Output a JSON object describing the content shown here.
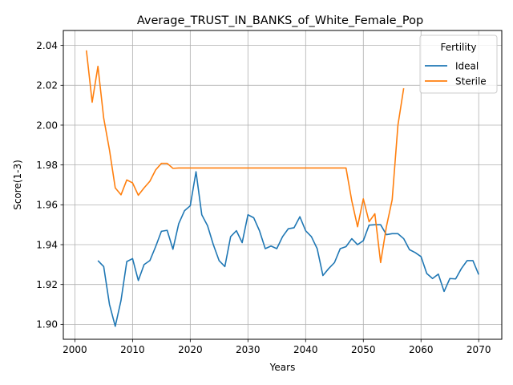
{
  "chart_data": {
    "type": "line",
    "title": "Average_TRUST_IN_BANKS_of_White_Female_Pop",
    "xlabel": "Years",
    "ylabel": "Score(1-3)",
    "xlim": [
      1998,
      2074
    ],
    "ylim": [
      1.8925,
      2.0475
    ],
    "x_ticks": [
      2000,
      2010,
      2020,
      2030,
      2040,
      2050,
      2060,
      2070
    ],
    "y_ticks": [
      1.9,
      1.92,
      1.94,
      1.96,
      1.98,
      2.0,
      2.02,
      2.04
    ],
    "x_tick_labels": [
      "2000",
      "2010",
      "2020",
      "2030",
      "2040",
      "2050",
      "2060",
      "2070"
    ],
    "y_tick_labels": [
      "1.90",
      "1.92",
      "1.94",
      "1.96",
      "1.98",
      "2.00",
      "2.02",
      "2.04"
    ],
    "grid": true,
    "legend": {
      "title": "Fertility",
      "placement": "top-right"
    },
    "series": [
      {
        "name": "Ideal",
        "color": "#1f77b4",
        "x": [
          2004,
          2005,
          2006,
          2007,
          2008,
          2009,
          2010,
          2011,
          2012,
          2013,
          2014,
          2015,
          2016,
          2017,
          2018,
          2019,
          2020,
          2021,
          2022,
          2023,
          2024,
          2025,
          2026,
          2027,
          2028,
          2029,
          2030,
          2031,
          2032,
          2033,
          2034,
          2035,
          2036,
          2037,
          2038,
          2039,
          2040,
          2041,
          2042,
          2043,
          2044,
          2045,
          2046,
          2047,
          2048,
          2049,
          2050,
          2051,
          2052,
          2053,
          2054,
          2055,
          2056,
          2057,
          2058,
          2059,
          2060,
          2061,
          2062,
          2063,
          2064,
          2065,
          2066,
          2067,
          2068,
          2069,
          2070
        ],
        "values": [
          1.932,
          1.929,
          1.91,
          1.899,
          1.912,
          1.9315,
          1.933,
          1.922,
          1.93,
          1.932,
          1.939,
          1.9467,
          1.9472,
          1.9377,
          1.9505,
          1.957,
          1.9595,
          1.9766,
          1.955,
          1.9495,
          1.94,
          1.932,
          1.929,
          1.944,
          1.947,
          1.941,
          1.955,
          1.9535,
          1.947,
          1.938,
          1.9393,
          1.938,
          1.944,
          1.948,
          1.9485,
          1.954,
          1.947,
          1.944,
          1.938,
          1.9245,
          1.928,
          1.931,
          1.938,
          1.939,
          1.943,
          1.94,
          1.942,
          1.9498,
          1.95,
          1.95,
          1.945,
          1.9455,
          1.9455,
          1.943,
          1.9375,
          1.936,
          1.934,
          1.9255,
          1.923,
          1.9252,
          1.9165,
          1.923,
          1.9228,
          1.928,
          1.932,
          1.932,
          1.925
        ]
      },
      {
        "name": "Sterile",
        "color": "#ff7f0e",
        "x": [
          2002,
          2003,
          2004,
          2005,
          2006,
          2007,
          2008,
          2009,
          2010,
          2011,
          2012,
          2013,
          2014,
          2015,
          2016,
          2017,
          2018,
          2019,
          2020,
          2021,
          2022,
          2023,
          2024,
          2025,
          2026,
          2027,
          2028,
          2029,
          2030,
          2031,
          2032,
          2033,
          2034,
          2035,
          2036,
          2037,
          2038,
          2039,
          2040,
          2041,
          2042,
          2043,
          2044,
          2045,
          2046,
          2047,
          2048,
          2049,
          2050,
          2051,
          2052,
          2053,
          2054,
          2055,
          2056,
          2057
        ],
        "values": [
          2.0375,
          2.0115,
          2.0295,
          2.0035,
          1.9875,
          1.9685,
          1.965,
          1.9725,
          1.971,
          1.9648,
          1.9685,
          1.9718,
          1.9775,
          1.9808,
          1.9808,
          1.9783,
          1.9785,
          1.9785,
          1.9785,
          1.9785,
          1.9785,
          1.9785,
          1.9785,
          1.9785,
          1.9785,
          1.9785,
          1.9785,
          1.9785,
          1.9785,
          1.9785,
          1.9785,
          1.9785,
          1.9785,
          1.9785,
          1.9785,
          1.9785,
          1.9785,
          1.9785,
          1.9785,
          1.9785,
          1.9785,
          1.9785,
          1.9785,
          1.9785,
          1.9785,
          1.9785,
          1.962,
          1.949,
          1.963,
          1.9515,
          1.9555,
          1.931,
          1.949,
          1.9625,
          2.0,
          2.0185
        ]
      }
    ]
  }
}
